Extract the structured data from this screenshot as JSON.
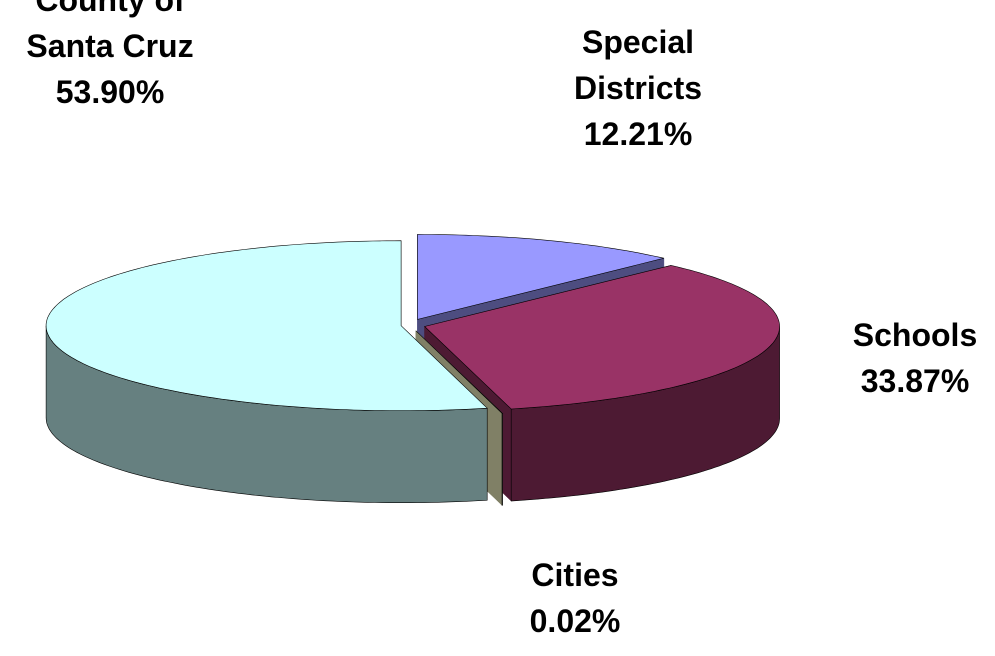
{
  "chart_data": {
    "type": "pie3d",
    "categories": [
      "Special Districts",
      "Schools",
      "Cities",
      "County of Santa Cruz"
    ],
    "values": [
      12.21,
      33.87,
      0.02,
      53.9
    ],
    "value_labels": [
      "12.21%",
      "33.87%",
      "0.02%",
      "53.90%"
    ],
    "colors": [
      "#9999ff",
      "#993366",
      "#ffffcc",
      "#ccffff"
    ]
  }
}
